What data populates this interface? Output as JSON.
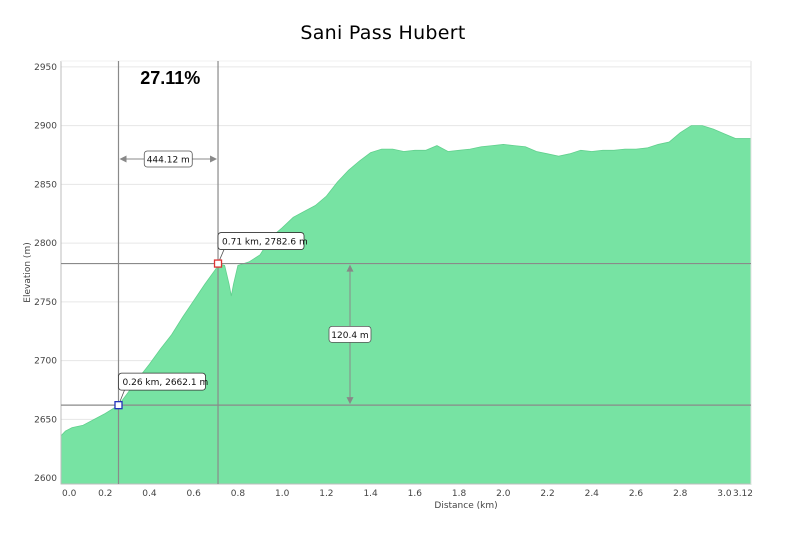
{
  "chart_data": {
    "type": "area",
    "title": "Sani Pass Hubert",
    "xlabel": "Distance  (km)",
    "ylabel": "Elevation (m)",
    "xlim": [
      0,
      3.12
    ],
    "ylim": [
      2595,
      2955
    ],
    "x_ticks": [
      0.0,
      0.2,
      0.4,
      0.6,
      0.8,
      1.0,
      1.2,
      1.4,
      1.6,
      1.8,
      2.0,
      2.2,
      2.4,
      2.6,
      2.8,
      3.0,
      3.12
    ],
    "x_tick_labels": [
      "0.0",
      "0.2",
      "0.4",
      "0.6",
      "0.8",
      "1.0",
      "1.2",
      "1.4",
      "1.6",
      "1.8",
      "2.0",
      "2.2",
      "2.4",
      "2.6",
      "2.8",
      "3.0",
      "3.12"
    ],
    "y_ticks": [
      2600,
      2650,
      2700,
      2750,
      2800,
      2850,
      2900,
      2950
    ],
    "y_tick_labels": [
      "2600",
      "2650",
      "2700",
      "2750",
      "2800",
      "2850",
      "2900",
      "2950"
    ],
    "grid": "horizontal",
    "fill_color": "#77e3a3",
    "x": [
      0.0,
      0.02,
      0.05,
      0.1,
      0.15,
      0.2,
      0.26,
      0.3,
      0.35,
      0.4,
      0.45,
      0.5,
      0.55,
      0.6,
      0.65,
      0.7,
      0.71,
      0.74,
      0.76,
      0.77,
      0.78,
      0.8,
      0.85,
      0.9,
      0.95,
      1.0,
      1.05,
      1.1,
      1.15,
      1.2,
      1.25,
      1.3,
      1.35,
      1.4,
      1.45,
      1.5,
      1.55,
      1.6,
      1.65,
      1.7,
      1.75,
      1.8,
      1.85,
      1.9,
      1.95,
      2.0,
      2.05,
      2.1,
      2.15,
      2.2,
      2.25,
      2.3,
      2.35,
      2.4,
      2.45,
      2.5,
      2.55,
      2.6,
      2.65,
      2.7,
      2.75,
      2.8,
      2.85,
      2.9,
      2.95,
      3.0,
      3.05,
      3.08,
      3.12
    ],
    "y": [
      2636,
      2640,
      2643,
      2645,
      2650,
      2655,
      2662,
      2672,
      2685,
      2697,
      2710,
      2722,
      2737,
      2751,
      2765,
      2778,
      2782.6,
      2781,
      2765,
      2755,
      2765,
      2781,
      2784,
      2790,
      2805,
      2813,
      2822,
      2827,
      2832,
      2840,
      2852,
      2862,
      2870,
      2877,
      2880,
      2880,
      2878,
      2879,
      2879,
      2883,
      2878,
      2879,
      2880,
      2882,
      2883,
      2884,
      2883,
      2882,
      2878,
      2876,
      2874,
      2876,
      2879,
      2878,
      2879,
      2879,
      2880,
      2880,
      2881,
      2884,
      2886,
      2894,
      2900,
      2900,
      2897,
      2893,
      2889,
      2889,
      2889
    ],
    "markers": [
      {
        "x": 0.26,
        "y": 2662.1,
        "label": "0.26 km, 2662.1 m",
        "color": "#2233bb"
      },
      {
        "x": 0.71,
        "y": 2782.6,
        "label": "0.71 km, 2782.6 m",
        "color": "#dd3333"
      }
    ],
    "horizontal_measure_label": "444.12 m",
    "vertical_measure_label": "120.4 m",
    "grade_label": "27.11%"
  }
}
